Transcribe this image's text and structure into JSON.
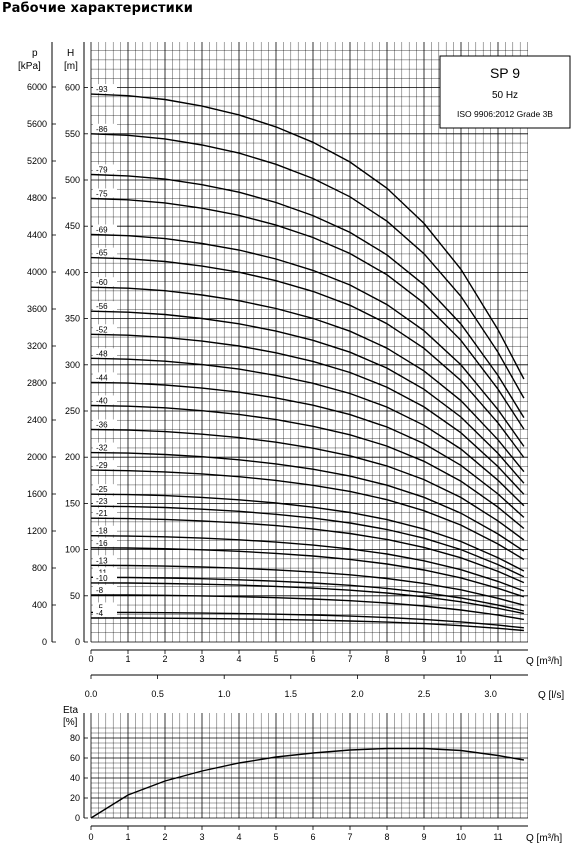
{
  "page": {
    "title": "Рабочие характеристики"
  },
  "legend_box": {
    "model": "SP 9",
    "frequency": "50 Hz",
    "standard": "ISO 9906:2012 Grade 3B"
  },
  "chart_data": [
    {
      "type": "line",
      "title": "",
      "xlabel": "Q [m³/h]",
      "ylabel": "H [m]",
      "ylabel_secondary": "p [kPa]",
      "x_ticks": [
        "0",
        "1",
        "2",
        "3",
        "4",
        "5",
        "6",
        "7",
        "8",
        "9",
        "10",
        "11"
      ],
      "y_ticks": [
        "0",
        "50",
        "100",
        "150",
        "200",
        "250",
        "300",
        "350",
        "400",
        "450",
        "500",
        "550",
        "600"
      ],
      "y2_ticks": [
        "0",
        "400",
        "800",
        "1200",
        "1600",
        "2000",
        "2400",
        "2800",
        "3200",
        "3600",
        "4000",
        "4400",
        "4800",
        "5200",
        "5600",
        "6000"
      ],
      "xlim": [
        0,
        11.8
      ],
      "ylim": [
        0,
        650
      ],
      "grid": true,
      "x": [
        0,
        1,
        2,
        3,
        4,
        5,
        6,
        7,
        8,
        9,
        10,
        11,
        11.7
      ],
      "shape": [
        1.0,
        0.997,
        0.99,
        0.978,
        0.962,
        0.94,
        0.912,
        0.876,
        0.828,
        0.764,
        0.68,
        0.57,
        0.48
      ],
      "series": [
        {
          "name": "-93",
          "shutoff_head": 593
        },
        {
          "name": "-86",
          "shutoff_head": 550
        },
        {
          "name": "-79",
          "shutoff_head": 506
        },
        {
          "name": "-75",
          "shutoff_head": 480
        },
        {
          "name": "-69",
          "shutoff_head": 441
        },
        {
          "name": "-65",
          "shutoff_head": 416
        },
        {
          "name": "-60",
          "shutoff_head": 384
        },
        {
          "name": "-56",
          "shutoff_head": 358
        },
        {
          "name": "-52",
          "shutoff_head": 333
        },
        {
          "name": "-48",
          "shutoff_head": 307
        },
        {
          "name": "-44",
          "shutoff_head": 281
        },
        {
          "name": "-40",
          "shutoff_head": 256
        },
        {
          "name": "-36",
          "shutoff_head": 230
        },
        {
          "name": "-32",
          "shutoff_head": 205
        },
        {
          "name": "-29",
          "shutoff_head": 186
        },
        {
          "name": "-25",
          "shutoff_head": 160
        },
        {
          "name": "-23",
          "shutoff_head": 147
        },
        {
          "name": "-21",
          "shutoff_head": 134
        },
        {
          "name": "-18",
          "shutoff_head": 115
        },
        {
          "name": "-16",
          "shutoff_head": 102
        },
        {
          "name": "-13",
          "shutoff_head": 83
        },
        {
          "name": "-11",
          "shutoff_head": 70
        },
        {
          "name": "-10",
          "shutoff_head": 64
        },
        {
          "name": "-8",
          "shutoff_head": 51
        },
        {
          "name": "-5",
          "shutoff_head": 32
        },
        {
          "name": "-4",
          "shutoff_head": 26
        }
      ]
    },
    {
      "type": "line",
      "title": "",
      "xlabel": "Q [l/s]",
      "x_ticks": [
        "0.0",
        "0.5",
        "1.0",
        "1.5",
        "2.0",
        "2.5",
        "3.0"
      ],
      "xlim": [
        0,
        3.28
      ],
      "grid": false
    },
    {
      "type": "line",
      "title": "",
      "xlabel": "Q [m³/h]",
      "ylabel": "Eta [%]",
      "x_ticks": [
        "0",
        "1",
        "2",
        "3",
        "4",
        "5",
        "6",
        "7",
        "8",
        "9",
        "10",
        "11"
      ],
      "y_ticks": [
        "0",
        "20",
        "40",
        "60",
        "80"
      ],
      "xlim": [
        0,
        11.8
      ],
      "ylim": [
        0,
        90
      ],
      "grid": true,
      "series": [
        {
          "name": "",
          "x": [
            0,
            1,
            2,
            3,
            4,
            5,
            6,
            7,
            8,
            9,
            10,
            11,
            11.7
          ],
          "values": [
            0,
            23,
            37,
            47,
            55,
            61,
            65,
            68,
            69.5,
            69.5,
            67.5,
            62.5,
            58
          ]
        }
      ]
    }
  ]
}
